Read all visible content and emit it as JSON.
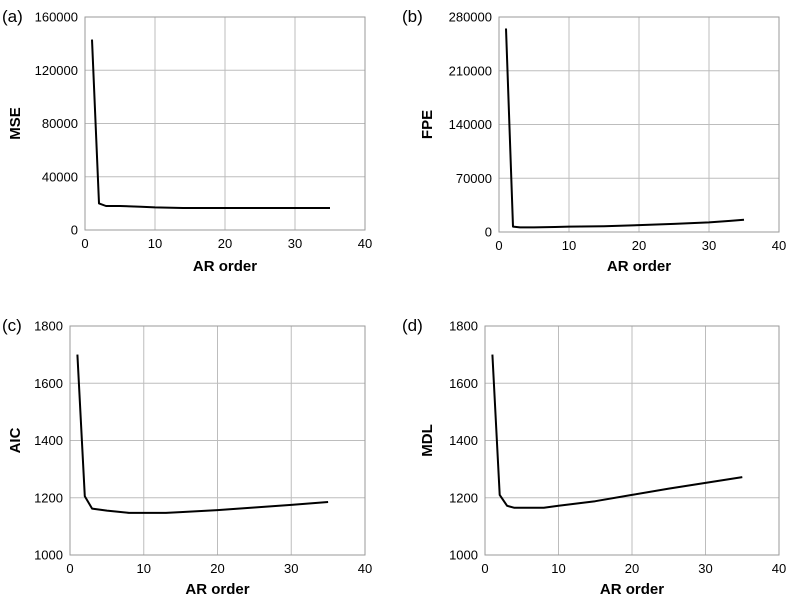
{
  "chart_data": [
    {
      "type": "line",
      "panel_label": "(a)",
      "xlabel": "AR order",
      "ylabel": "MSE",
      "xlim": [
        0,
        40
      ],
      "ylim": [
        0,
        160000
      ],
      "xticks": [
        0,
        10,
        20,
        30,
        40
      ],
      "yticks": [
        0,
        40000,
        80000,
        120000,
        160000
      ],
      "ytick_labels": [
        "0",
        "40000",
        "80000",
        "120000",
        "160000"
      ],
      "grid": true,
      "series": [
        {
          "x": [
            1,
            2,
            3,
            5,
            8,
            10,
            14,
            20,
            25,
            30,
            35
          ],
          "y": [
            143000,
            20000,
            18000,
            18000,
            17500,
            17000,
            16500,
            16500,
            16500,
            16500,
            16500
          ]
        }
      ]
    },
    {
      "type": "line",
      "panel_label": "(b)",
      "xlabel": "AR order",
      "ylabel": "FPE",
      "xlim": [
        0,
        40
      ],
      "ylim": [
        0,
        280000
      ],
      "xticks": [
        0,
        10,
        20,
        30,
        40
      ],
      "yticks": [
        0,
        70000,
        140000,
        210000,
        280000
      ],
      "ytick_labels": [
        "0",
        "70000",
        "140000",
        "210000",
        "280000"
      ],
      "grid": true,
      "series": [
        {
          "x": [
            1,
            2,
            3,
            5,
            8,
            10,
            15,
            20,
            25,
            30,
            33,
            35
          ],
          "y": [
            265000,
            7000,
            6000,
            6000,
            6500,
            7000,
            7500,
            9000,
            10500,
            12500,
            14500,
            16000
          ]
        }
      ]
    },
    {
      "type": "line",
      "panel_label": "(c)",
      "xlabel": "AR order",
      "ylabel": "AIC",
      "xlim": [
        0,
        40
      ],
      "ylim": [
        1000,
        1800
      ],
      "xticks": [
        0,
        10,
        20,
        30,
        40
      ],
      "yticks": [
        1000,
        1200,
        1400,
        1600,
        1800
      ],
      "ytick_labels": [
        "1000",
        "1200",
        "1400",
        "1600",
        "1800"
      ],
      "grid": true,
      "series": [
        {
          "x": [
            1,
            2,
            3,
            5,
            8,
            10,
            13,
            15,
            20,
            25,
            30,
            35
          ],
          "y": [
            1700,
            1205,
            1162,
            1155,
            1147,
            1147,
            1147,
            1150,
            1157,
            1166,
            1175,
            1185
          ]
        }
      ]
    },
    {
      "type": "line",
      "panel_label": "(d)",
      "xlabel": "AR order",
      "ylabel": "MDL",
      "xlim": [
        0,
        40
      ],
      "ylim": [
        1000,
        1800
      ],
      "xticks": [
        0,
        10,
        20,
        30,
        40
      ],
      "yticks": [
        1000,
        1200,
        1400,
        1600,
        1800
      ],
      "ytick_labels": [
        "1000",
        "1200",
        "1400",
        "1600",
        "1800"
      ],
      "grid": true,
      "series": [
        {
          "x": [
            1,
            2,
            3,
            4,
            6,
            8,
            10,
            15,
            20,
            25,
            30,
            35
          ],
          "y": [
            1700,
            1210,
            1172,
            1165,
            1165,
            1165,
            1172,
            1188,
            1210,
            1232,
            1252,
            1272
          ]
        }
      ]
    }
  ]
}
